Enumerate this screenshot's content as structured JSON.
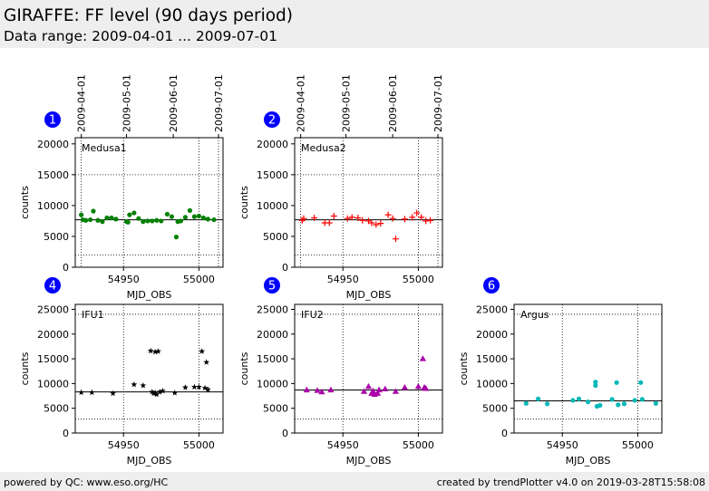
{
  "header": {
    "title": "GIRAFFE: FF level (90 days period)",
    "subtitle": "Data range: 2009-04-01 ... 2009-07-01"
  },
  "footer": {
    "left": "powered by QC: www.eso.org/HC",
    "right": "created by trendPlotter v4.0 on 2019-03-28T15:58:08"
  },
  "colors": {
    "badge": "#0000ff",
    "medusa1": "#008000",
    "medusa2": "#ff0000",
    "ifu1": "#000000",
    "ifu2": "#aa00aa",
    "argus": "#00b8b8"
  },
  "chart_data": [
    {
      "type": "scatter",
      "badge": "1",
      "label": "Medusa1",
      "marker": "dot",
      "color": "#008000",
      "xlabel": "MJD_OBS",
      "ylabel": "counts",
      "xlim": [
        54918,
        55016
      ],
      "ylim": [
        0,
        21000
      ],
      "yticks": [
        0,
        5000,
        10000,
        15000,
        20000
      ],
      "xticks": [
        54950,
        55000
      ],
      "date_ticks": [
        {
          "mjd": 54922,
          "label": "2009-04-01"
        },
        {
          "mjd": 54952,
          "label": "2009-05-01"
        },
        {
          "mjd": 54983,
          "label": "2009-06-01"
        },
        {
          "mjd": 55013,
          "label": "2009-07-01"
        }
      ],
      "hlines": {
        "median": 7700,
        "lower": 2000,
        "upper": 15000
      },
      "x": [
        54922,
        54923,
        54925,
        54928,
        54930,
        54933,
        54936,
        54939,
        54942,
        54945,
        54952,
        54953,
        54954,
        54957,
        54960,
        54963,
        54966,
        54969,
        54972,
        54975,
        54979,
        54982,
        54985,
        54986,
        54988,
        54991,
        54994,
        54997,
        55000,
        55003,
        55006,
        55010
      ],
      "y": [
        8500,
        7700,
        7600,
        7700,
        9100,
        7600,
        7400,
        8000,
        8000,
        7800,
        7400,
        7300,
        8500,
        8800,
        7900,
        7400,
        7500,
        7500,
        7600,
        7500,
        8600,
        8200,
        4900,
        7400,
        7500,
        8100,
        9200,
        8200,
        8300,
        8000,
        7800,
        7700
      ]
    },
    {
      "type": "scatter",
      "badge": "2",
      "label": "Medusa2",
      "marker": "plus",
      "color": "#ff0000",
      "xlabel": "MJD_OBS",
      "ylabel": "counts",
      "xlim": [
        54918,
        55016
      ],
      "ylim": [
        0,
        21000
      ],
      "yticks": [
        0,
        5000,
        10000,
        15000,
        20000
      ],
      "xticks": [
        54950,
        55000
      ],
      "date_ticks": [
        {
          "mjd": 54922,
          "label": "2009-04-01"
        },
        {
          "mjd": 54952,
          "label": "2009-05-01"
        },
        {
          "mjd": 54983,
          "label": "2009-06-01"
        },
        {
          "mjd": 55013,
          "label": "2009-07-01"
        }
      ],
      "hlines": {
        "median": 7700,
        "lower": 2000,
        "upper": 15000
      },
      "x": [
        54923,
        54924,
        54931,
        54938,
        54941,
        54944,
        54953,
        54956,
        54960,
        54963,
        54967,
        54969,
        54972,
        54975,
        54980,
        54983,
        54985,
        54991,
        54996,
        54999,
        55002,
        55005,
        55008
      ],
      "y": [
        7600,
        7900,
        8000,
        7200,
        7200,
        8300,
        7900,
        8100,
        8000,
        7600,
        7500,
        7200,
        6900,
        7100,
        8500,
        7900,
        4600,
        7800,
        8100,
        8800,
        8100,
        7500,
        7600
      ]
    },
    {
      "type": "scatter",
      "badge": "4",
      "label": "IFU1",
      "marker": "star",
      "color": "#000000",
      "xlabel": "MJD_OBS",
      "ylabel": "counts",
      "xlim": [
        54918,
        55016
      ],
      "ylim": [
        0,
        26000
      ],
      "yticks": [
        0,
        5000,
        10000,
        15000,
        20000,
        25000
      ],
      "xticks": [
        54950,
        55000
      ],
      "hlines": {
        "median": 8300,
        "lower": 2800,
        "upper": 24000
      },
      "x": [
        54922,
        54929,
        54943,
        54957,
        54963,
        54968,
        54969,
        54970,
        54971,
        54971,
        54972,
        54973,
        54974,
        54976,
        54984,
        54991,
        54997,
        55000,
        55002,
        55004,
        55005,
        55006
      ],
      "y": [
        8200,
        8200,
        8000,
        9800,
        9600,
        16600,
        8300,
        8000,
        16400,
        8100,
        7800,
        16500,
        8300,
        8500,
        8100,
        9200,
        9300,
        9300,
        16500,
        9100,
        14300,
        8800
      ]
    },
    {
      "type": "scatter",
      "badge": "5",
      "label": "IFU2",
      "marker": "triangle",
      "color": "#aa00aa",
      "xlabel": "MJD_OBS",
      "ylabel": "counts",
      "xlim": [
        54918,
        55016
      ],
      "ylim": [
        0,
        26000
      ],
      "yticks": [
        0,
        5000,
        10000,
        15000,
        20000,
        25000
      ],
      "xticks": [
        54950,
        55000
      ],
      "hlines": {
        "median": 8700,
        "lower": 2800,
        "upper": 24000
      },
      "x": [
        54926,
        54933,
        54936,
        54942,
        54964,
        54967,
        54969,
        54970,
        54971,
        54973,
        54974,
        54978,
        54985,
        54991,
        55000,
        55003,
        55004,
        55005
      ],
      "y": [
        8700,
        8600,
        8300,
        8700,
        8400,
        9400,
        8000,
        8500,
        7800,
        8000,
        8700,
        8900,
        8400,
        9200,
        9400,
        15000,
        9200,
        9000
      ]
    },
    {
      "type": "scatter",
      "badge": "6",
      "label": "Argus",
      "marker": "dot",
      "color": "#00b8b8",
      "xlabel": "MJD_OBS",
      "ylabel": "counts",
      "xlim": [
        54918,
        55016
      ],
      "ylim": [
        0,
        26000
      ],
      "yticks": [
        0,
        5000,
        10000,
        15000,
        20000,
        25000
      ],
      "xticks": [
        54950,
        55000
      ],
      "hlines": {
        "median": 6500,
        "lower": 2800,
        "upper": 24000
      },
      "x": [
        54926,
        54934,
        54940,
        54957,
        54961,
        54967,
        54972,
        54972,
        54973,
        54975,
        54983,
        54986,
        54987,
        54991,
        54998,
        55002,
        55003,
        55012
      ],
      "y": [
        6000,
        6900,
        5900,
        6600,
        6900,
        6300,
        9600,
        10300,
        5400,
        5600,
        6800,
        10200,
        5700,
        5900,
        6600,
        10200,
        6800,
        6000
      ]
    }
  ]
}
